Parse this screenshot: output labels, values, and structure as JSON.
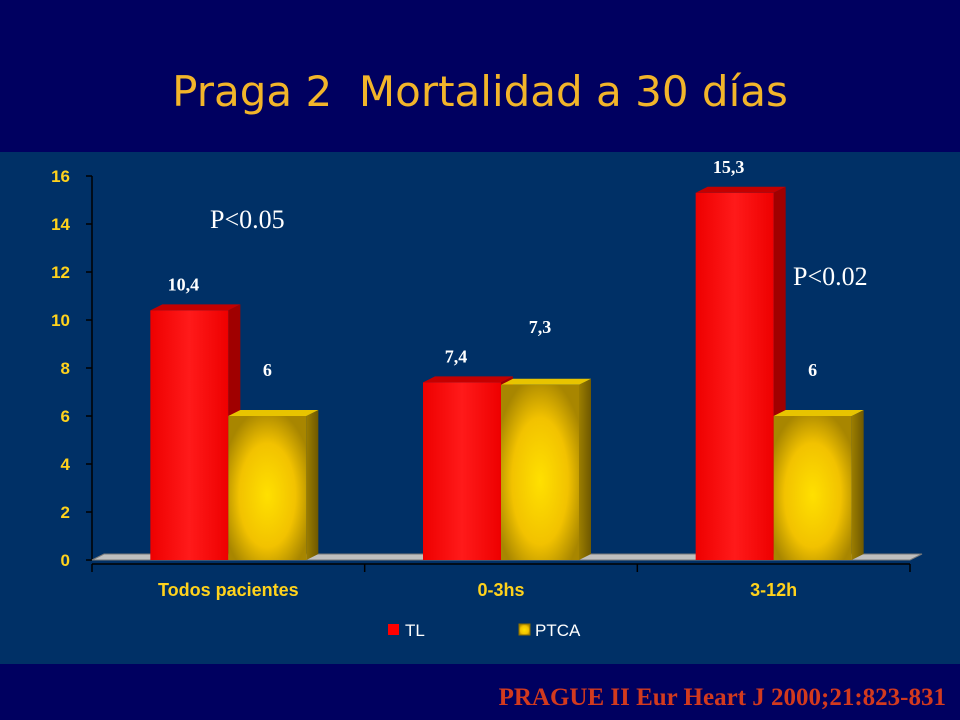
{
  "title": "Praga 2  Mortalidad a 30 días",
  "citation": "PRAGUE II Eur Heart J 2000;21:823-831",
  "colors": {
    "background": "#000060",
    "plot_panel": "#003066",
    "title": "#F2B52A",
    "axis_text": "#FFD21C",
    "citation": "#D23A1E",
    "TL": "#FF0000",
    "PTCA": "#E6B800"
  },
  "chart_data": {
    "type": "bar",
    "style": "3d-clustered-column",
    "categories": [
      "Todos pacientes",
      "0-3hs",
      "3-12h"
    ],
    "series": [
      {
        "name": "TL",
        "values": [
          10.4,
          7.4,
          15.3
        ],
        "labels": [
          "10,4",
          "7,4",
          "15,3"
        ]
      },
      {
        "name": "PTCA",
        "values": [
          6,
          7.3,
          6
        ],
        "labels": [
          "6",
          "7,3",
          "6"
        ]
      }
    ],
    "yticks": [
      "0",
      "2",
      "4",
      "6",
      "8",
      "10",
      "12",
      "14",
      "16"
    ],
    "ylim": [
      0,
      16
    ],
    "grid": false,
    "legend_position": "bottom",
    "annotations": [
      "P<0.05",
      "P<0.02"
    ]
  }
}
